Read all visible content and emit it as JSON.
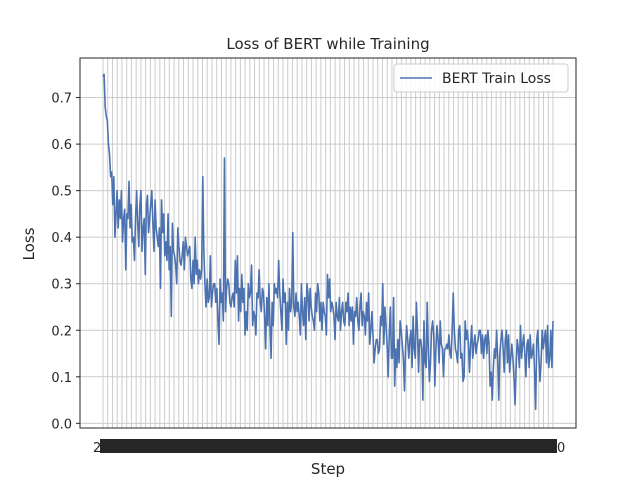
{
  "chart_data": {
    "type": "line",
    "title": "Loss of BERT while Training",
    "xlabel": "Step",
    "ylabel": "Loss",
    "ylim": [
      -0.01,
      0.785
    ],
    "yticks": [
      "0.0",
      "0.1",
      "0.2",
      "0.3",
      "0.4",
      "0.5",
      "0.6",
      "0.7"
    ],
    "xtick_label_first": "2",
    "xtick_label_last": "0",
    "xtick_count": 96,
    "grid": true,
    "legend": "top-right",
    "colors": {
      "line": "#4c72b0",
      "grid": "#cccccc",
      "axes": "#262626"
    },
    "series": [
      {
        "name": "BERT Train Loss",
        "values": [
          0.745,
          0.75,
          0.68,
          0.66,
          0.65,
          0.6,
          0.58,
          0.53,
          0.54,
          0.47,
          0.53,
          0.4,
          0.45,
          0.5,
          0.42,
          0.48,
          0.44,
          0.5,
          0.39,
          0.44,
          0.46,
          0.33,
          0.45,
          0.44,
          0.52,
          0.42,
          0.47,
          0.39,
          0.4,
          0.35,
          0.44,
          0.5,
          0.43,
          0.38,
          0.47,
          0.5,
          0.37,
          0.42,
          0.44,
          0.32,
          0.47,
          0.49,
          0.41,
          0.44,
          0.47,
          0.5,
          0.43,
          0.37,
          0.48,
          0.42,
          0.4,
          0.38,
          0.42,
          0.29,
          0.48,
          0.41,
          0.45,
          0.36,
          0.39,
          0.35,
          0.45,
          0.33,
          0.38,
          0.23,
          0.43,
          0.37,
          0.36,
          0.34,
          0.3,
          0.42,
          0.38,
          0.35,
          0.34,
          0.36,
          0.39,
          0.33,
          0.4,
          0.38,
          0.36,
          0.37,
          0.38,
          0.31,
          0.29,
          0.35,
          0.3,
          0.4,
          0.32,
          0.35,
          0.3,
          0.33,
          0.31,
          0.33,
          0.53,
          0.37,
          0.3,
          0.25,
          0.31,
          0.26,
          0.27,
          0.36,
          0.25,
          0.28,
          0.3,
          0.3,
          0.26,
          0.29,
          0.22,
          0.17,
          0.31,
          0.26,
          0.28,
          0.22,
          0.57,
          0.24,
          0.29,
          0.31,
          0.3,
          0.26,
          0.25,
          0.27,
          0.28,
          0.25,
          0.35,
          0.28,
          0.36,
          0.22,
          0.29,
          0.24,
          0.32,
          0.26,
          0.29,
          0.19,
          0.24,
          0.2,
          0.3,
          0.27,
          0.28,
          0.34,
          0.21,
          0.24,
          0.23,
          0.19,
          0.28,
          0.27,
          0.33,
          0.26,
          0.24,
          0.29,
          0.28,
          0.23,
          0.16,
          0.27,
          0.21,
          0.3,
          0.21,
          0.14,
          0.26,
          0.21,
          0.3,
          0.28,
          0.29,
          0.27,
          0.35,
          0.28,
          0.24,
          0.2,
          0.31,
          0.26,
          0.28,
          0.17,
          0.26,
          0.2,
          0.29,
          0.24,
          0.26,
          0.41,
          0.25,
          0.23,
          0.28,
          0.24,
          0.26,
          0.23,
          0.19,
          0.3,
          0.24,
          0.21,
          0.27,
          0.18,
          0.3,
          0.28,
          0.22,
          0.29,
          0.25,
          0.23,
          0.22,
          0.2,
          0.28,
          0.24,
          0.3,
          0.28,
          0.22,
          0.26,
          0.2,
          0.26,
          0.24,
          0.23,
          0.19,
          0.32,
          0.27,
          0.31,
          0.24,
          0.26,
          0.25,
          0.23,
          0.18,
          0.26,
          0.23,
          0.22,
          0.27,
          0.2,
          0.24,
          0.26,
          0.22,
          0.21,
          0.26,
          0.24,
          0.28,
          0.21,
          0.25,
          0.22,
          0.25,
          0.17,
          0.24,
          0.23,
          0.27,
          0.22,
          0.2,
          0.25,
          0.28,
          0.21,
          0.24,
          0.23,
          0.19,
          0.26,
          0.22,
          0.28,
          0.17,
          0.2,
          0.24,
          0.19,
          0.13,
          0.16,
          0.18,
          0.18,
          0.15,
          0.16,
          0.23,
          0.21,
          0.3,
          0.17,
          0.25,
          0.21,
          0.17,
          0.1,
          0.19,
          0.25,
          0.14,
          0.14,
          0.27,
          0.08,
          0.16,
          0.12,
          0.18,
          0.13,
          0.22,
          0.2,
          0.17,
          0.14,
          0.07,
          0.16,
          0.21,
          0.18,
          0.14,
          0.18,
          0.2,
          0.12,
          0.23,
          0.16,
          0.14,
          0.26,
          0.2,
          0.11,
          0.18,
          0.18,
          0.16,
          0.05,
          0.22,
          0.13,
          0.12,
          0.26,
          0.16,
          0.09,
          0.13,
          0.2,
          0.22,
          0.19,
          0.08,
          0.16,
          0.21,
          0.18,
          0.13,
          0.22,
          0.17,
          0.16,
          0.1,
          0.16,
          0.16,
          0.17,
          0.16,
          0.19,
          0.15,
          0.14,
          0.2,
          0.28,
          0.2,
          0.16,
          0.15,
          0.13,
          0.2,
          0.21,
          0.14,
          0.15,
          0.09,
          0.1,
          0.22,
          0.18,
          0.2,
          0.17,
          0.11,
          0.17,
          0.21,
          0.14,
          0.17,
          0.19,
          0.15,
          0.17,
          0.18,
          0.2,
          0.2,
          0.15,
          0.19,
          0.14,
          0.18,
          0.19,
          0.15,
          0.2,
          0.17,
          0.08,
          0.11,
          0.05,
          0.12,
          0.16,
          0.14,
          0.2,
          0.14,
          0.05,
          0.15,
          0.18,
          0.2,
          0.16,
          0.11,
          0.18,
          0.2,
          0.13,
          0.19,
          0.11,
          0.14,
          0.17,
          0.14,
          0.1,
          0.04,
          0.12,
          0.18,
          0.16,
          0.12,
          0.21,
          0.14,
          0.17,
          0.19,
          0.15,
          0.1,
          0.17,
          0.18,
          0.12,
          0.19,
          0.14,
          0.15,
          0.17,
          0.11,
          0.03,
          0.18,
          0.2,
          0.14,
          0.09,
          0.13,
          0.2,
          0.16,
          0.18,
          0.2,
          0.13,
          0.21,
          0.12,
          0.14,
          0.2,
          0.12,
          0.22
        ]
      }
    ]
  }
}
